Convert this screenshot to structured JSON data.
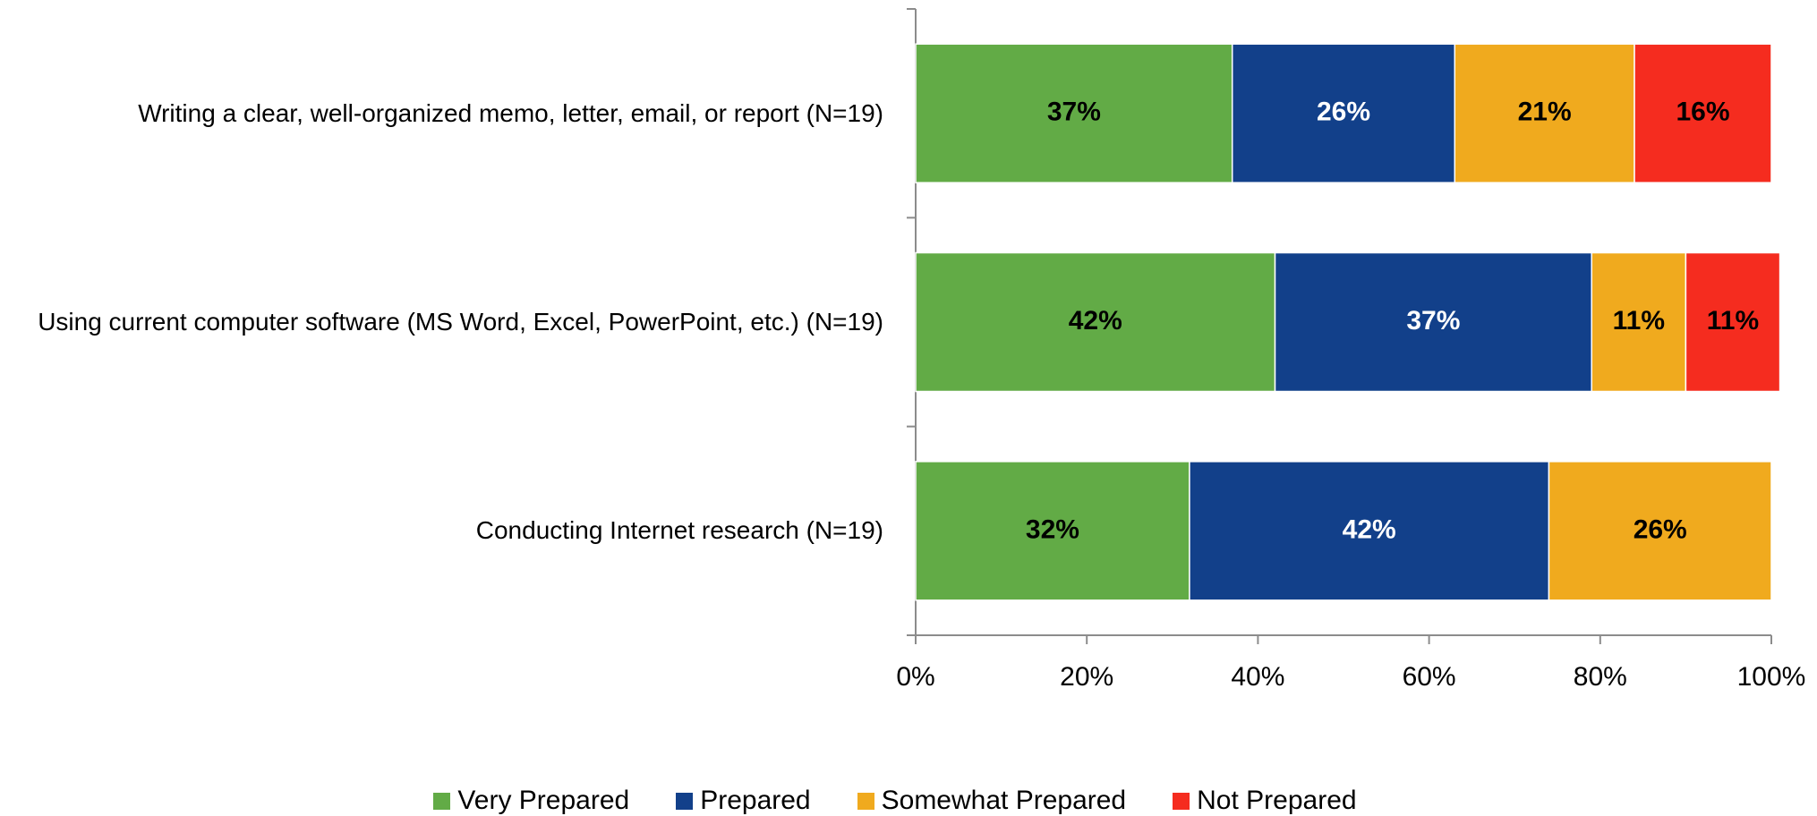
{
  "chart_data": {
    "type": "stacked_bar_horizontal",
    "categories": [
      "Writing a clear, well-organized memo, letter, email, or report (N=19)",
      "Using current computer software (MS Word, Excel, PowerPoint, etc.) (N=19)",
      "Conducting Internet research (N=19)"
    ],
    "series": [
      {
        "name": "Very Prepared",
        "color": "#62ab46",
        "label_color": "#000000",
        "values": [
          37,
          42,
          32
        ],
        "value_labels": [
          "37%",
          "42%",
          "32%"
        ]
      },
      {
        "name": "Prepared",
        "color": "#12408a",
        "label_color": "#ffffff",
        "values": [
          26,
          37,
          42
        ],
        "value_labels": [
          "26%",
          "37%",
          "42%"
        ]
      },
      {
        "name": "Somewhat Prepared",
        "color": "#f0aa1e",
        "label_color": "#000000",
        "values": [
          21,
          11,
          26
        ],
        "value_labels": [
          "21%",
          "11%",
          "26%"
        ]
      },
      {
        "name": "Not Prepared",
        "color": "#f52c1f",
        "label_color": "#000000",
        "values": [
          16,
          11,
          null
        ],
        "value_labels": [
          "16%",
          "11%",
          null
        ]
      }
    ],
    "xlim": [
      0,
      100
    ],
    "xticks": [
      {
        "value": 0,
        "label": "0%"
      },
      {
        "value": 20,
        "label": "20%"
      },
      {
        "value": 40,
        "label": "40%"
      },
      {
        "value": 60,
        "label": "60%"
      },
      {
        "value": 80,
        "label": "80%"
      },
      {
        "value": 100,
        "label": "100%"
      }
    ],
    "legend": "bottom"
  }
}
